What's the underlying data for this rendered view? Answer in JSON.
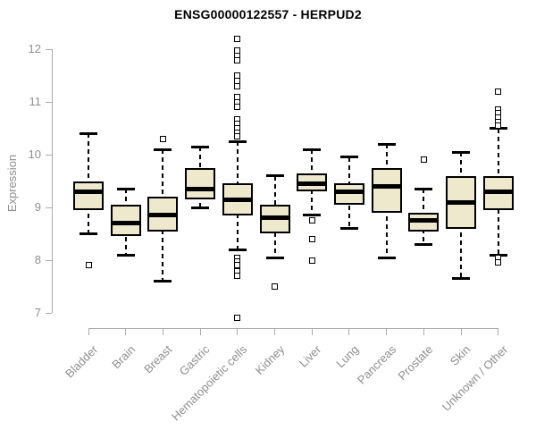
{
  "title": "ENSG00000122557 - HERPUD2",
  "ylabel": "Expression",
  "colors": {
    "box_fill": "#EEE8CD",
    "box_border": "#000000",
    "median": "#000000",
    "axis_line": "#aaaaaa",
    "tick_label": "#8e8e8e",
    "title": "#000000",
    "background": "#ffffff"
  },
  "chart_data": {
    "type": "boxplot",
    "title": "ENSG00000122557 - HERPUD2",
    "xlabel": "",
    "ylabel": "Expression",
    "ylim": [
      7,
      12
    ],
    "yticks": [
      7,
      8,
      9,
      10,
      11,
      12
    ],
    "grid": false,
    "legend": false,
    "categories": [
      "Bladder",
      "Brain",
      "Breast",
      "Gastric",
      "Hematopoietic cells",
      "Kidney",
      "Liver",
      "Lung",
      "Pancreas",
      "Prostate",
      "Skin",
      "Unknown / Other"
    ],
    "series": [
      {
        "category": "Bladder",
        "whisker_low": 8.5,
        "q1": 8.95,
        "median": 9.3,
        "q3": 9.5,
        "whisker_high": 10.4,
        "outliers": [
          7.9
        ]
      },
      {
        "category": "Brain",
        "whisker_low": 8.1,
        "q1": 8.45,
        "median": 8.7,
        "q3": 9.05,
        "whisker_high": 9.35,
        "outliers": []
      },
      {
        "category": "Breast",
        "whisker_low": 7.6,
        "q1": 8.55,
        "median": 8.85,
        "q3": 9.2,
        "whisker_high": 10.1,
        "outliers": [
          10.3
        ]
      },
      {
        "category": "Gastric",
        "whisker_low": 9.0,
        "q1": 9.15,
        "median": 9.35,
        "q3": 9.75,
        "whisker_high": 10.15,
        "outliers": []
      },
      {
        "category": "Hematopoietic cells",
        "whisker_low": 8.2,
        "q1": 8.85,
        "median": 9.15,
        "q3": 9.45,
        "whisker_high": 10.25,
        "outliers": [
          12.2,
          11.98,
          11.88,
          11.78,
          11.5,
          11.4,
          11.3,
          11.1,
          11.0,
          10.9,
          10.67,
          10.58,
          10.5,
          10.42,
          10.35,
          8.05,
          7.97,
          7.9,
          7.78,
          7.7,
          6.9
        ]
      },
      {
        "category": "Kidney",
        "whisker_low": 8.05,
        "q1": 8.5,
        "median": 8.8,
        "q3": 9.05,
        "whisker_high": 9.6,
        "outliers": [
          7.5
        ]
      },
      {
        "category": "Liver",
        "whisker_low": 8.85,
        "q1": 9.3,
        "median": 9.45,
        "q3": 9.65,
        "whisker_high": 10.1,
        "outliers": [
          8.75,
          8.4,
          8.0
        ]
      },
      {
        "category": "Lung",
        "whisker_low": 8.6,
        "q1": 9.05,
        "median": 9.3,
        "q3": 9.45,
        "whisker_high": 9.95,
        "outliers": []
      },
      {
        "category": "Pancreas",
        "whisker_low": 8.05,
        "q1": 8.9,
        "median": 9.4,
        "q3": 9.75,
        "whisker_high": 10.2,
        "outliers": []
      },
      {
        "category": "Prostate",
        "whisker_low": 8.3,
        "q1": 8.55,
        "median": 8.75,
        "q3": 8.9,
        "whisker_high": 9.35,
        "outliers": [
          9.9
        ]
      },
      {
        "category": "Skin",
        "whisker_low": 7.65,
        "q1": 8.6,
        "median": 9.1,
        "q3": 9.6,
        "whisker_high": 10.05,
        "outliers": []
      },
      {
        "category": "Unknown / Other",
        "whisker_low": 8.1,
        "q1": 8.95,
        "median": 9.3,
        "q3": 9.6,
        "whisker_high": 10.5,
        "outliers": [
          11.2,
          10.85,
          10.78,
          10.7,
          10.62,
          10.55,
          8.05,
          7.95
        ]
      }
    ]
  }
}
